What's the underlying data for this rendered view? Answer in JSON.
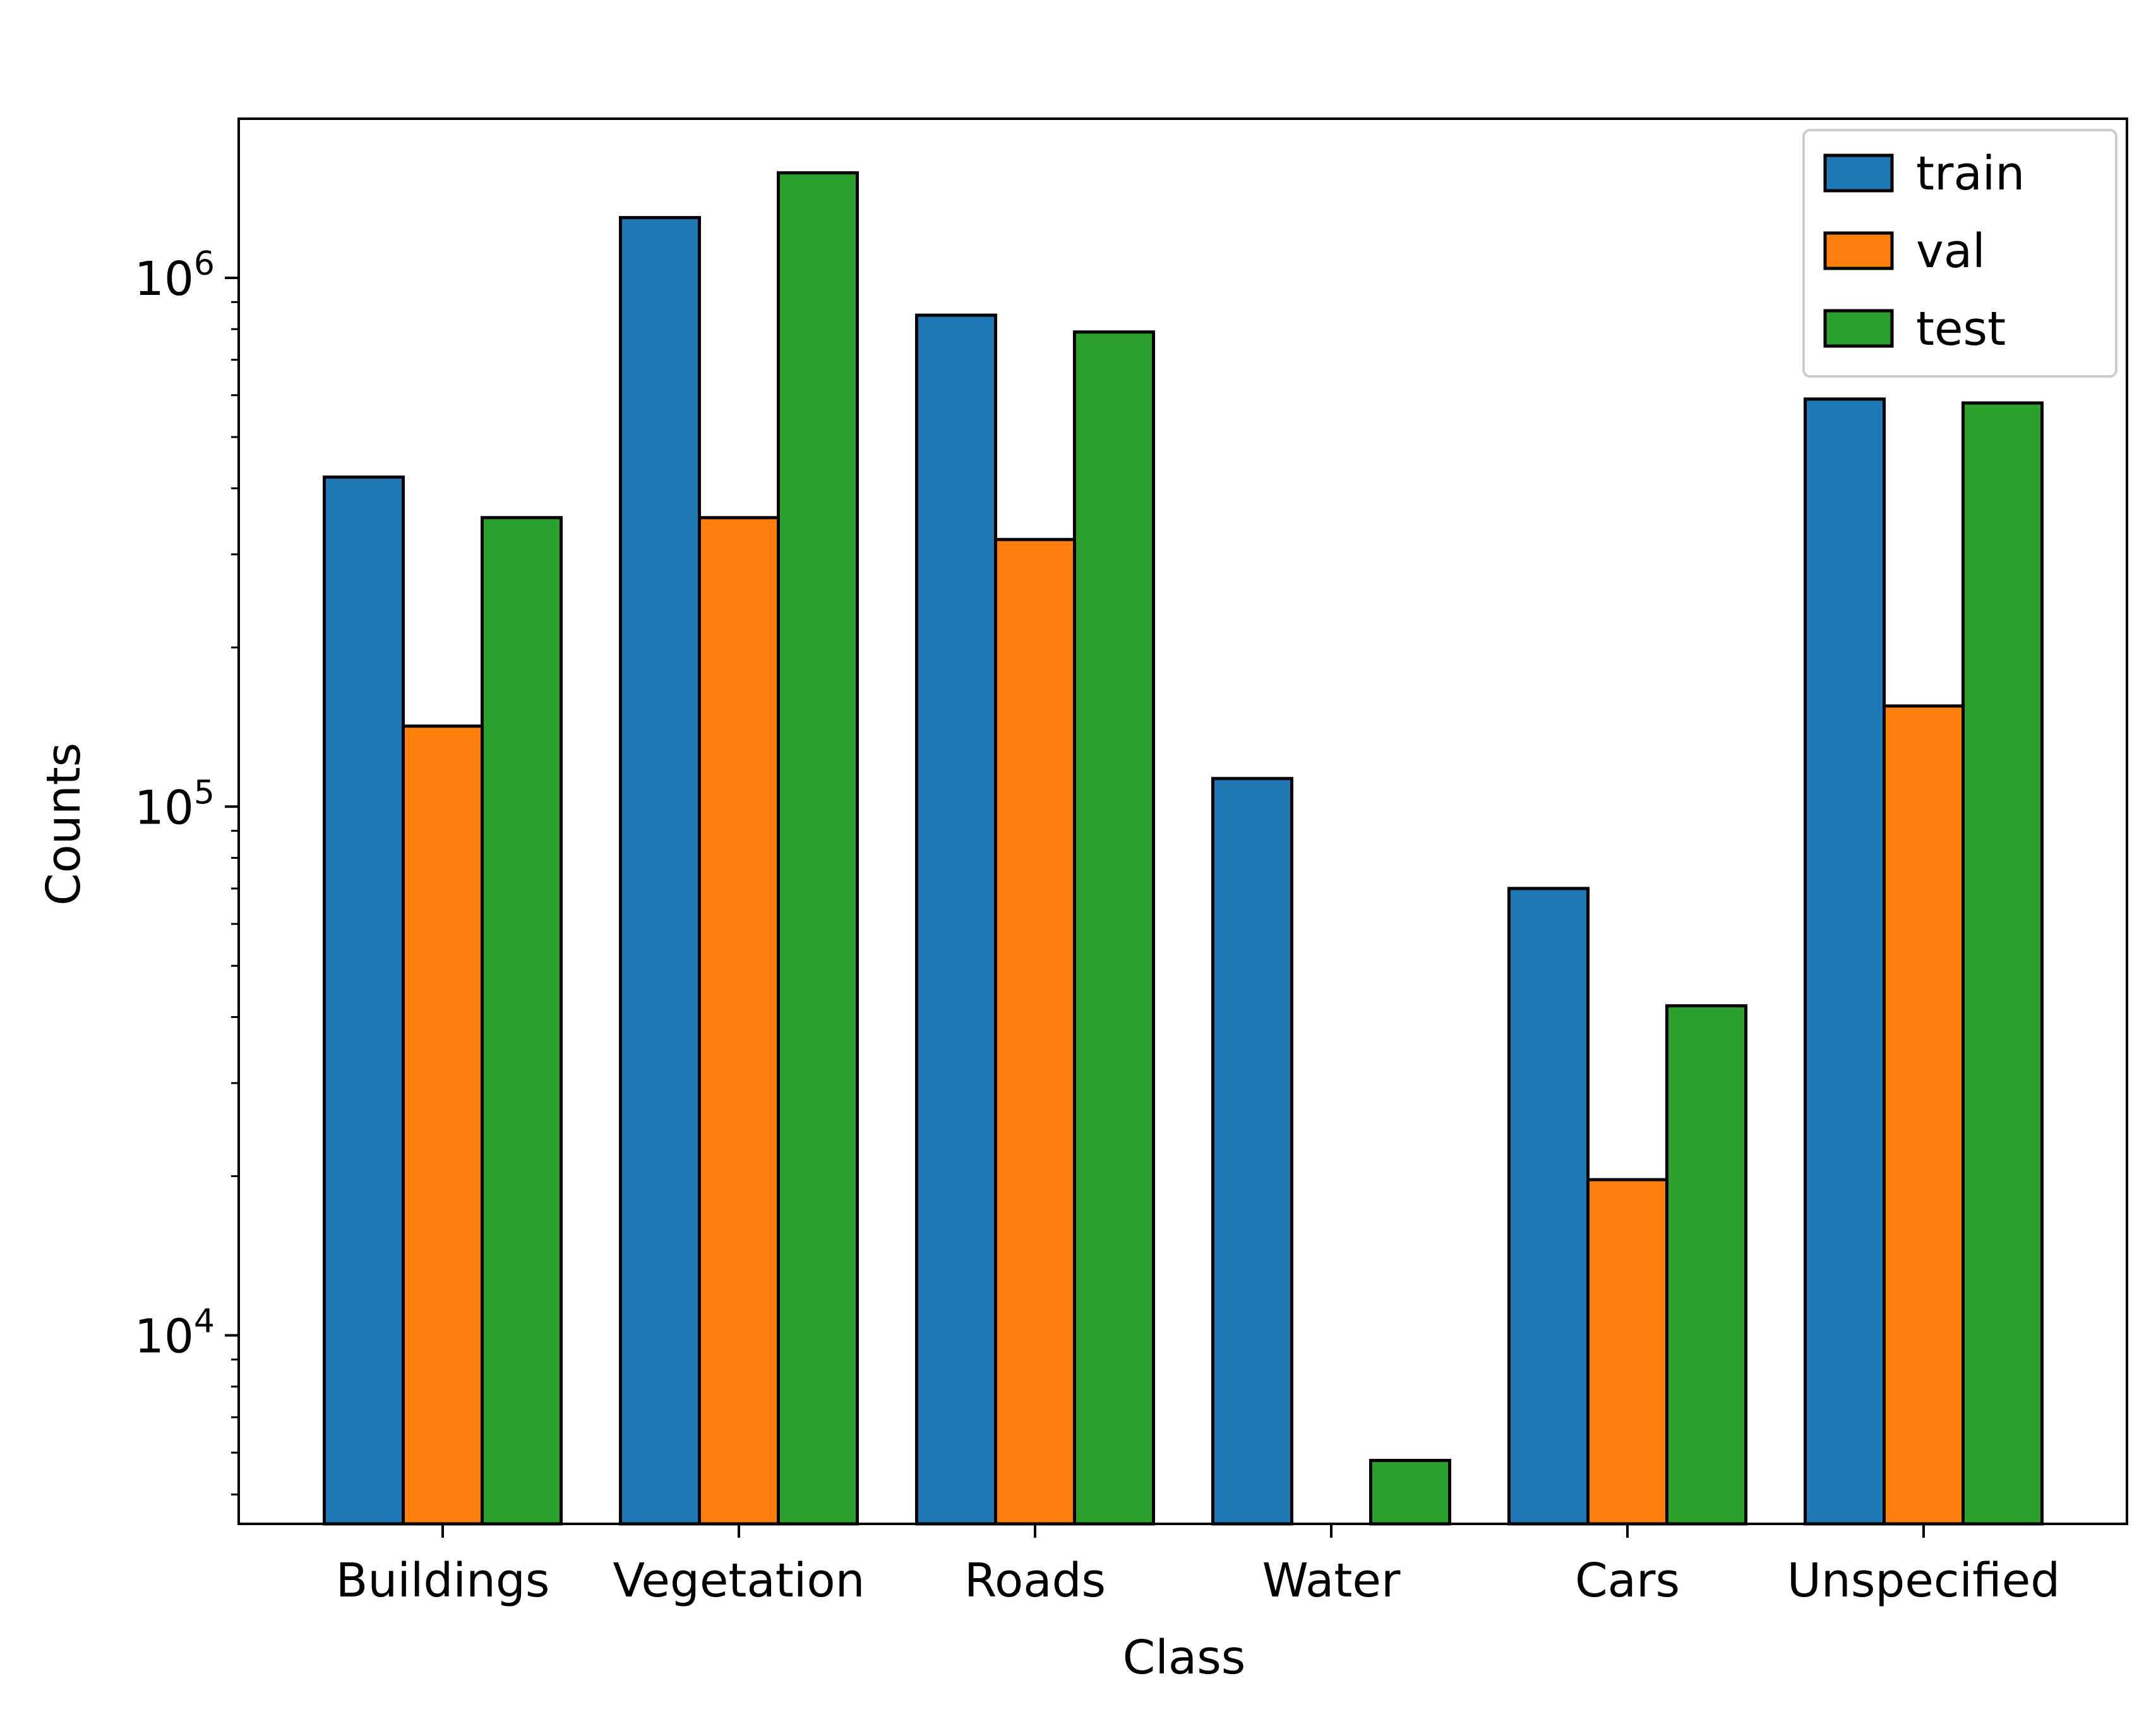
{
  "chart_data": {
    "type": "bar",
    "title": "",
    "xlabel": "Class",
    "ylabel": "Counts",
    "yscale": "log",
    "ylim": [
      4400,
      2000000
    ],
    "categories": [
      "Buildings",
      "Vegetation",
      "Roads",
      "Water",
      "Cars",
      "Unspecified"
    ],
    "series": [
      {
        "name": "train",
        "color": "#1f77b4",
        "values": [
          420000,
          1300000,
          850000,
          113000,
          70000,
          590000
        ]
      },
      {
        "name": "val",
        "color": "#ff7f0e",
        "values": [
          142000,
          352000,
          320000,
          null,
          19700,
          155000
        ]
      },
      {
        "name": "test",
        "color": "#2ca02c",
        "values": [
          352000,
          1580000,
          790000,
          5800,
          42000,
          580000
        ]
      }
    ],
    "yticks": [
      {
        "value": 10000,
        "base": "10",
        "exp": "4"
      },
      {
        "value": 100000,
        "base": "10",
        "exp": "5"
      },
      {
        "value": 1000000,
        "base": "10",
        "exp": "6"
      }
    ],
    "legend": {
      "position": "top-right"
    },
    "grid": false
  }
}
